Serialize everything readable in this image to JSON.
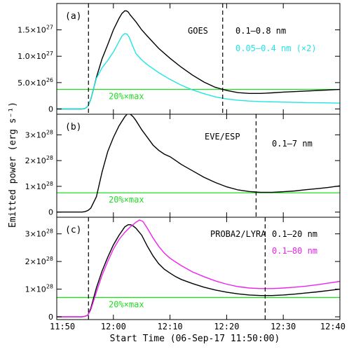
{
  "figure": {
    "ylabel": "Emitted power (erg s⁻¹)",
    "xlabel": "Start Time (06-Sep-17 11:50:00)",
    "x_ticks": [
      "11:50",
      "12:00",
      "12:10",
      "12:20",
      "12:30",
      "12:40"
    ],
    "line_colors": {
      "primary": "#000000",
      "secondary_goes": "#22e5e5",
      "secondary_lyra": "#ee22ee",
      "threshold": "#22dd22"
    }
  },
  "chart_data": [
    {
      "type": "line",
      "panel": "(a)",
      "instrument": "GOES",
      "x_unit": "minutes after 11:50",
      "xlim": [
        0,
        50
      ],
      "ylim": [
        -1e+26,
        2e+27
      ],
      "y_ticks": [
        0,
        5e+26,
        1e+27,
        1.5e+27
      ],
      "y_tick_labels": [
        {
          "mant": "0",
          "exp": ""
        },
        {
          "mant": "5.0×10",
          "exp": "26"
        },
        {
          "mant": "1.0×10",
          "exp": "27"
        },
        {
          "mant": "1.5×10",
          "exp": "27"
        }
      ],
      "threshold": {
        "label": "20%×max",
        "value": 3.7e+26
      },
      "vlines": [
        5.6,
        29.3
      ],
      "series": [
        {
          "name": "0.1–0.8 nm",
          "color": "#000000",
          "x": [
            0,
            4.5,
            5.0,
            5.5,
            6,
            6.5,
            7,
            8,
            9,
            10,
            11,
            11.5,
            12,
            12.3,
            12.6,
            13,
            14,
            15,
            16,
            18,
            20,
            22,
            24,
            26,
            28,
            30,
            32,
            34,
            36,
            38,
            40,
            44,
            48,
            50
          ],
          "y": [
            0,
            0,
            1e+25,
            5e+25,
            1.8e+26,
            3.8e+26,
            6e+26,
            9.5e+26,
            1.22e+27,
            1.5e+27,
            1.72e+27,
            1.81e+27,
            1.86e+27,
            1.86e+27,
            1.84e+27,
            1.78e+27,
            1.65e+27,
            1.5e+27,
            1.38e+27,
            1.15e+27,
            9.6e+26,
            7.9e+26,
            6.4e+26,
            5.1e+26,
            4.1e+26,
            3.5e+26,
            3.1e+26,
            2.95e+26,
            2.95e+26,
            3.05e+26,
            3.2e+26,
            3.4e+26,
            3.6e+26,
            3.7e+26
          ]
        },
        {
          "name": "0.05–0.4 nm (×2)",
          "color": "#22e5e5",
          "x": [
            0,
            4.5,
            5.0,
            5.5,
            6,
            6.5,
            7,
            8,
            9,
            10,
            11,
            11.5,
            12,
            12.4,
            12.8,
            13.3,
            14,
            15,
            16,
            18,
            20,
            22,
            24,
            26,
            28,
            30,
            32,
            34,
            36,
            40,
            44,
            48,
            50
          ],
          "y": [
            0,
            0,
            1e+25,
            5e+25,
            1.8e+26,
            3.8e+26,
            5.8e+26,
            7.8e+26,
            9.2e+26,
            1.08e+27,
            1.28e+27,
            1.38e+27,
            1.43e+27,
            1.42e+27,
            1.36e+27,
            1.22e+27,
            1.05e+27,
            9.3e+26,
            8.4e+26,
            6.9e+26,
            5.6e+26,
            4.5e+26,
            3.6e+26,
            2.9e+26,
            2.3e+26,
            1.9e+26,
            1.65e+26,
            1.5e+26,
            1.4e+26,
            1.3e+26,
            1.2e+26,
            1.15e+26,
            1.1e+26
          ]
        }
      ]
    },
    {
      "type": "line",
      "panel": "(b)",
      "instrument": "EVE/ESP",
      "x_unit": "minutes after 11:50",
      "xlim": [
        0,
        50
      ],
      "ylim": [
        -2e+27,
        3.8e+28
      ],
      "y_ticks": [
        0,
        1e+28,
        2e+28,
        3e+28
      ],
      "y_tick_labels": [
        {
          "mant": "0",
          "exp": ""
        },
        {
          "mant": "1×10",
          "exp": "28"
        },
        {
          "mant": "2×10",
          "exp": "28"
        },
        {
          "mant": "3×10",
          "exp": "28"
        }
      ],
      "threshold": {
        "label": "20%×max",
        "value": 7.5e+27
      },
      "vlines": [
        35.2
      ],
      "series": [
        {
          "name": "0.1–7 nm",
          "color": "#000000",
          "x": [
            0,
            4.5,
            5.0,
            5.5,
            6,
            7,
            8,
            9,
            10,
            11,
            12,
            12.5,
            13,
            13.5,
            14,
            15,
            16,
            17,
            18,
            19,
            20,
            21,
            22,
            24,
            26,
            28,
            30,
            32,
            34,
            36,
            38,
            40,
            42,
            44,
            46,
            48,
            50
          ],
          "y": [
            0,
            0,
            2e+26,
            6e+26,
            1.5e+27,
            6e+27,
            1.55e+28,
            2.35e+28,
            2.9e+28,
            3.35e+28,
            3.7e+28,
            3.82e+28,
            3.8e+28,
            3.7e+28,
            3.55e+28,
            3.2e+28,
            2.9e+28,
            2.6e+28,
            2.4e+28,
            2.25e+28,
            2.15e+28,
            2e+28,
            1.85e+28,
            1.6e+28,
            1.35e+28,
            1.15e+28,
            9.8e+27,
            8.6e+27,
            8e+27,
            7.7e+27,
            7.7e+27,
            7.9e+27,
            8.2e+27,
            8.7e+27,
            9.1e+27,
            9.6e+27,
            1.02e+28
          ]
        }
      ]
    },
    {
      "type": "line",
      "panel": "(c)",
      "instrument": "PROBA2/LYRA",
      "x_unit": "minutes after 11:50",
      "xlim": [
        0,
        50
      ],
      "ylim": [
        -1e+27,
        3.6e+28
      ],
      "y_ticks": [
        0,
        1e+28,
        2e+28,
        3e+28
      ],
      "y_tick_labels": [
        {
          "mant": "0",
          "exp": ""
        },
        {
          "mant": "1×10",
          "exp": "28"
        },
        {
          "mant": "2×10",
          "exp": "28"
        },
        {
          "mant": "3×10",
          "exp": "28"
        }
      ],
      "threshold": {
        "label": "20%×max",
        "value": 7e+27
      },
      "vlines": [
        5.6,
        36.8
      ],
      "series": [
        {
          "name": "0.1–20 nm",
          "color": "#000000",
          "x": [
            0,
            4.5,
            5.0,
            5.5,
            6,
            7,
            8,
            9,
            10,
            11,
            12,
            12.6,
            13,
            13.4,
            14,
            15,
            16,
            17,
            18,
            19,
            20,
            21,
            22,
            24,
            26,
            28,
            30,
            32,
            34,
            36,
            38,
            40,
            42,
            44,
            46,
            48,
            50
          ],
          "y": [
            0,
            0,
            2e+26,
            6e+26,
            3e+27,
            1.05e+28,
            1.65e+28,
            2.15e+28,
            2.6e+28,
            2.95e+28,
            3.25e+28,
            3.33e+28,
            3.33e+28,
            3.3e+28,
            3.2e+28,
            2.95e+28,
            2.55e+28,
            2.2e+28,
            1.92e+28,
            1.72e+28,
            1.58e+28,
            1.45e+28,
            1.35e+28,
            1.2e+28,
            1.07e+28,
            9.7e+27,
            8.9e+27,
            8.3e+27,
            7.9e+27,
            7.7e+27,
            7.7e+27,
            7.9e+27,
            8.2e+27,
            8.6e+27,
            9e+27,
            9.5e+27,
            1e+28
          ]
        },
        {
          "name": "0.1–80 nm",
          "color": "#ee22ee",
          "x": [
            0,
            4.5,
            5.0,
            5.5,
            6,
            7,
            8,
            9,
            10,
            11,
            12,
            13,
            14,
            14.6,
            15.2,
            16,
            17,
            18,
            19,
            20,
            21,
            22,
            24,
            26,
            28,
            30,
            32,
            34,
            36,
            38,
            40,
            42,
            44,
            46,
            48,
            50
          ],
          "y": [
            0,
            0,
            2e+26,
            6e+26,
            2.5e+27,
            9e+27,
            1.5e+28,
            2e+28,
            2.45e+28,
            2.8e+28,
            3.05e+28,
            3.25e+28,
            3.42e+28,
            3.5e+28,
            3.45e+28,
            3.2e+28,
            2.85e+28,
            2.55e+28,
            2.3e+28,
            2.12e+28,
            1.98e+28,
            1.85e+28,
            1.62e+28,
            1.45e+28,
            1.3e+28,
            1.18e+28,
            1.09e+28,
            1.04e+28,
            1.02e+28,
            1.02e+28,
            1.04e+28,
            1.07e+28,
            1.11e+28,
            1.16e+28,
            1.22e+28,
            1.28e+28
          ]
        }
      ]
    }
  ]
}
